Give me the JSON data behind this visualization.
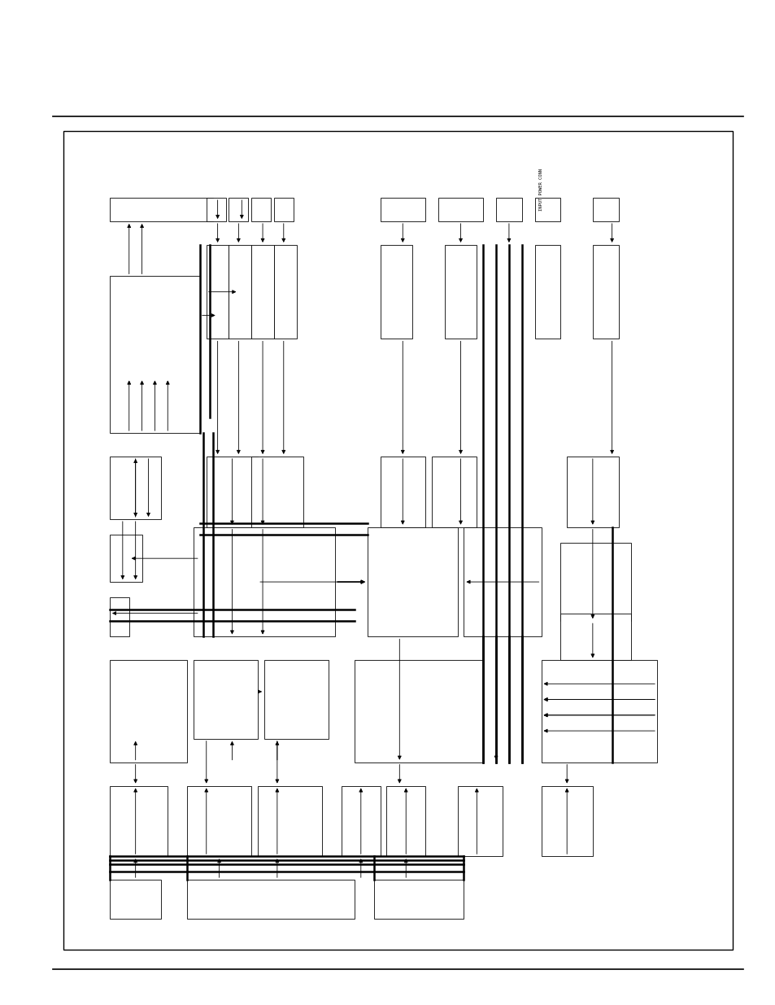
{
  "bg": "#ffffff",
  "lc": "#000000",
  "fw": 9.54,
  "fh": 12.35,
  "dpi": 100
}
